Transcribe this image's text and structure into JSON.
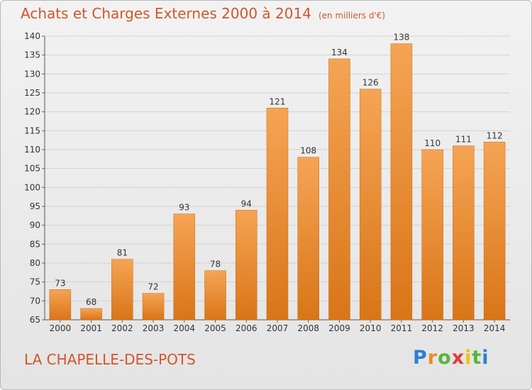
{
  "title": "Achats et Charges Externes 2000 à 2014",
  "unit_note": "(en milliers d'€)",
  "commune": "LA CHAPELLE-DES-POTS",
  "logo": "Proxiti",
  "colors": {
    "bar_top": "#f5a454",
    "bar_bottom": "#d97518",
    "title": "#d2562a"
  },
  "chart_data": {
    "type": "bar",
    "title": "Achats et Charges Externes 2000 à 2014",
    "categories": [
      "2000",
      "2001",
      "2002",
      "2003",
      "2004",
      "2005",
      "2006",
      "2007",
      "2008",
      "2009",
      "2010",
      "2011",
      "2012",
      "2013",
      "2014"
    ],
    "values": [
      73,
      68,
      81,
      72,
      93,
      78,
      94,
      121,
      108,
      134,
      126,
      138,
      110,
      111,
      112
    ],
    "ylim": [
      65,
      140
    ],
    "yticks": [
      65,
      70,
      75,
      80,
      85,
      90,
      95,
      100,
      105,
      110,
      115,
      120,
      125,
      130,
      135,
      140
    ],
    "grid": true,
    "xlabel": "",
    "ylabel": ""
  }
}
